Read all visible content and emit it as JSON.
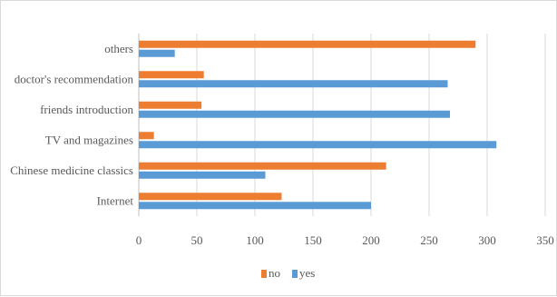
{
  "chart_data": {
    "type": "bar",
    "orientation": "horizontal",
    "categories": [
      "Internet",
      "Chinese medicine classics",
      "TV and magazines",
      "friends introduction",
      "doctor's recommendation",
      "others"
    ],
    "series": [
      {
        "name": "no",
        "color": "#ED7D31",
        "values": [
          123,
          213,
          13,
          54,
          56,
          290
        ]
      },
      {
        "name": "yes",
        "color": "#5B9BD5",
        "values": [
          200,
          109,
          308,
          268,
          266,
          31
        ]
      }
    ],
    "xlim": [
      0,
      350
    ],
    "x_ticks": [
      "0",
      "50",
      "100",
      "150",
      "200",
      "250",
      "300",
      "350"
    ],
    "grid": true,
    "legend_position": "bottom"
  }
}
